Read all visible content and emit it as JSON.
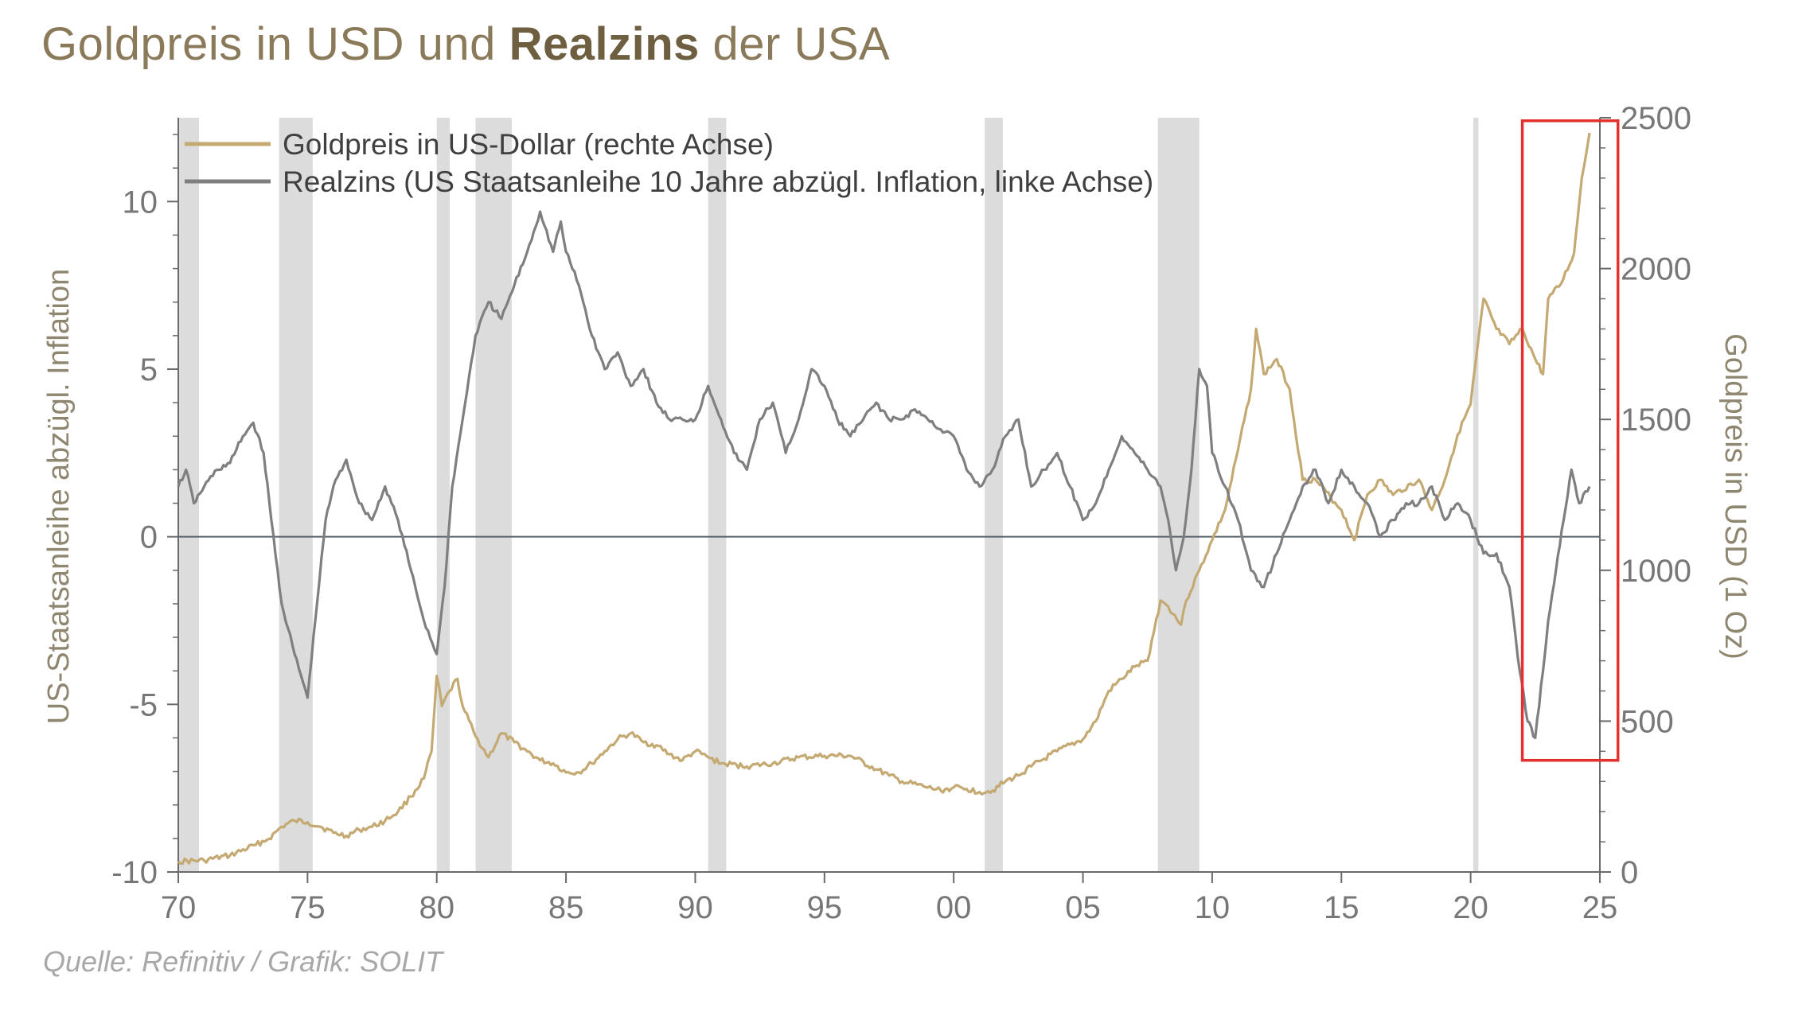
{
  "title": {
    "part1": "Goldpreis in USD und ",
    "part2": "Realzins",
    "part3": " der USA"
  },
  "source": "Quelle: Refinitiv / Grafik: SOLIT",
  "colors": {
    "gold": "#c4aa72",
    "real": "#7f7f7f",
    "recession": "#dcdcdc",
    "highlight": "#e53030",
    "zero": "#56606a",
    "axis": "#6a6a6a"
  },
  "chart_data": {
    "type": "line",
    "xlabel": "",
    "xlim": [
      1970,
      2025
    ],
    "x_ticks": [
      1970,
      1975,
      1980,
      1985,
      1990,
      1995,
      2000,
      2005,
      2010,
      2015,
      2020,
      2025
    ],
    "x_tick_labels": [
      "70",
      "75",
      "80",
      "85",
      "90",
      "95",
      "00",
      "05",
      "10",
      "15",
      "20",
      "25"
    ],
    "y_left": {
      "label": "US-Staatsanleihe abzügl. Inflation",
      "lim": [
        -10,
        12.5
      ],
      "ticks": [
        -10,
        -5,
        0,
        5,
        10
      ],
      "tick_labels": [
        "-10",
        "-5",
        "0",
        "5",
        "10"
      ]
    },
    "y_right": {
      "label": "Goldpreis in USD (1 Oz)",
      "lim": [
        0,
        2500
      ],
      "ticks": [
        0,
        500,
        1000,
        1500,
        2000,
        2500
      ],
      "tick_labels": [
        "0",
        "500",
        "1000",
        "1500",
        "2000",
        "2500"
      ]
    },
    "recessions": [
      [
        1970.0,
        1970.8
      ],
      [
        1973.9,
        1975.2
      ],
      [
        1980.0,
        1980.5
      ],
      [
        1981.5,
        1982.9
      ],
      [
        1990.5,
        1991.2
      ],
      [
        2001.2,
        2001.9
      ],
      [
        2007.9,
        2009.5
      ],
      [
        2020.1,
        2020.3
      ]
    ],
    "highlight": {
      "x": [
        2022.0,
        2025.7
      ],
      "y_right": [
        370,
        2490
      ]
    },
    "series": [
      {
        "name": "Goldpreis in US-Dollar (rechte Achse)",
        "axis": "right",
        "color": "#c4aa72",
        "x": [
          1970.0,
          1971.0,
          1972.0,
          1973.0,
          1973.5,
          1974.0,
          1974.5,
          1975.0,
          1975.5,
          1976.0,
          1976.5,
          1977.0,
          1977.5,
          1978.0,
          1978.5,
          1979.0,
          1979.5,
          1979.8,
          1980.0,
          1980.2,
          1980.5,
          1980.8,
          1981.0,
          1981.5,
          1982.0,
          1982.5,
          1983.0,
          1983.5,
          1984.0,
          1984.5,
          1985.0,
          1985.5,
          1986.0,
          1986.5,
          1987.0,
          1987.5,
          1988.0,
          1988.5,
          1989.0,
          1989.5,
          1990.0,
          1990.5,
          1991.0,
          1992.0,
          1993.0,
          1994.0,
          1995.0,
          1996.0,
          1997.0,
          1997.5,
          1998.0,
          1999.0,
          1999.5,
          2000.0,
          2000.5,
          2001.0,
          2001.5,
          2002.0,
          2002.5,
          2003.0,
          2004.0,
          2005.0,
          2005.5,
          2006.0,
          2006.5,
          2007.0,
          2007.5,
          2008.0,
          2008.3,
          2008.8,
          2009.0,
          2009.5,
          2010.0,
          2010.5,
          2011.0,
          2011.5,
          2011.7,
          2012.0,
          2012.5,
          2013.0,
          2013.5,
          2014.0,
          2015.0,
          2015.5,
          2016.0,
          2016.5,
          2017.0,
          2018.0,
          2018.5,
          2019.0,
          2019.5,
          2020.0,
          2020.5,
          2021.0,
          2021.5,
          2022.0,
          2022.5,
          2022.8,
          2023.0,
          2023.5,
          2024.0,
          2024.3,
          2024.6
        ],
        "values": [
          35,
          38,
          55,
          90,
          110,
          150,
          170,
          165,
          150,
          130,
          120,
          140,
          150,
          170,
          200,
          250,
          310,
          400,
          650,
          550,
          600,
          640,
          550,
          450,
          380,
          460,
          430,
          400,
          370,
          360,
          330,
          330,
          360,
          400,
          440,
          460,
          430,
          420,
          390,
          370,
          400,
          380,
          360,
          350,
          360,
          380,
          385,
          385,
          340,
          320,
          300,
          280,
          270,
          280,
          275,
          265,
          270,
          300,
          320,
          350,
          400,
          440,
          500,
          600,
          640,
          680,
          700,
          900,
          880,
          820,
          900,
          1000,
          1100,
          1200,
          1400,
          1600,
          1800,
          1650,
          1700,
          1600,
          1300,
          1300,
          1200,
          1100,
          1250,
          1300,
          1250,
          1300,
          1200,
          1300,
          1450,
          1550,
          1900,
          1800,
          1750,
          1800,
          1700,
          1650,
          1900,
          1950,
          2050,
          2300,
          2450
        ]
      },
      {
        "name": "Realzins (US Staatsanleihe 10 Jahre abzügl. Inflation, linke Achse)",
        "axis": "left",
        "color": "#7f7f7f",
        "x": [
          1970.0,
          1970.3,
          1970.6,
          1971.0,
          1971.5,
          1972.0,
          1972.5,
          1972.9,
          1973.3,
          1973.6,
          1974.0,
          1974.5,
          1975.0,
          1975.3,
          1975.7,
          1976.0,
          1976.5,
          1977.0,
          1977.5,
          1978.0,
          1978.5,
          1979.0,
          1979.5,
          1980.0,
          1980.3,
          1980.6,
          1981.0,
          1981.5,
          1982.0,
          1982.5,
          1983.0,
          1983.5,
          1984.0,
          1984.5,
          1984.8,
          1985.0,
          1985.5,
          1986.0,
          1986.5,
          1987.0,
          1987.5,
          1988.0,
          1988.5,
          1989.0,
          1989.5,
          1990.0,
          1990.5,
          1991.0,
          1991.5,
          1992.0,
          1992.5,
          1993.0,
          1993.5,
          1994.0,
          1994.5,
          1995.0,
          1995.5,
          1996.0,
          1996.5,
          1997.0,
          1997.5,
          1998.0,
          1998.5,
          1999.0,
          1999.5,
          2000.0,
          2000.5,
          2001.0,
          2001.5,
          2002.0,
          2002.5,
          2003.0,
          2003.5,
          2004.0,
          2004.5,
          2005.0,
          2005.5,
          2006.0,
          2006.5,
          2007.0,
          2007.5,
          2008.0,
          2008.3,
          2008.6,
          2008.9,
          2009.2,
          2009.5,
          2009.8,
          2010.0,
          2010.5,
          2011.0,
          2011.5,
          2012.0,
          2012.5,
          2013.0,
          2013.5,
          2014.0,
          2014.5,
          2015.0,
          2015.5,
          2016.0,
          2016.5,
          2017.0,
          2017.5,
          2018.0,
          2018.5,
          2019.0,
          2019.5,
          2020.0,
          2020.5,
          2021.0,
          2021.5,
          2021.9,
          2022.2,
          2022.5,
          2022.8,
          2023.0,
          2023.3,
          2023.6,
          2023.9,
          2024.2,
          2024.6
        ],
        "values": [
          1.5,
          2.0,
          1.0,
          1.5,
          2.0,
          2.2,
          3.0,
          3.4,
          2.5,
          0.5,
          -2.0,
          -3.5,
          -4.8,
          -2.5,
          0.5,
          1.5,
          2.3,
          1.0,
          0.5,
          1.5,
          0.5,
          -1.0,
          -2.5,
          -3.5,
          -1.5,
          1.5,
          3.5,
          6.0,
          7.0,
          6.5,
          7.5,
          8.5,
          9.7,
          8.5,
          9.4,
          8.5,
          7.5,
          6.0,
          5.0,
          5.5,
          4.5,
          5.0,
          4.0,
          3.5,
          3.5,
          3.5,
          4.5,
          3.5,
          2.5,
          2.0,
          3.5,
          4.0,
          2.5,
          3.5,
          5.0,
          4.5,
          3.5,
          3.0,
          3.5,
          4.0,
          3.5,
          3.5,
          3.8,
          3.5,
          3.2,
          3.0,
          2.0,
          1.5,
          2.0,
          3.0,
          3.5,
          1.5,
          2.0,
          2.5,
          1.5,
          0.5,
          1.0,
          2.0,
          3.0,
          2.5,
          2.0,
          1.5,
          0.5,
          -1.0,
          0.0,
          2.0,
          5.0,
          4.5,
          2.5,
          1.5,
          0.5,
          -1.0,
          -1.5,
          -0.5,
          0.5,
          1.5,
          2.0,
          1.0,
          2.0,
          1.5,
          1.0,
          0.0,
          0.5,
          1.0,
          1.0,
          1.5,
          0.5,
          1.0,
          0.5,
          -0.5,
          -0.5,
          -1.5,
          -4.0,
          -5.5,
          -6.0,
          -4.0,
          -2.5,
          -1.0,
          0.5,
          2.0,
          1.0,
          1.5
        ]
      }
    ]
  }
}
